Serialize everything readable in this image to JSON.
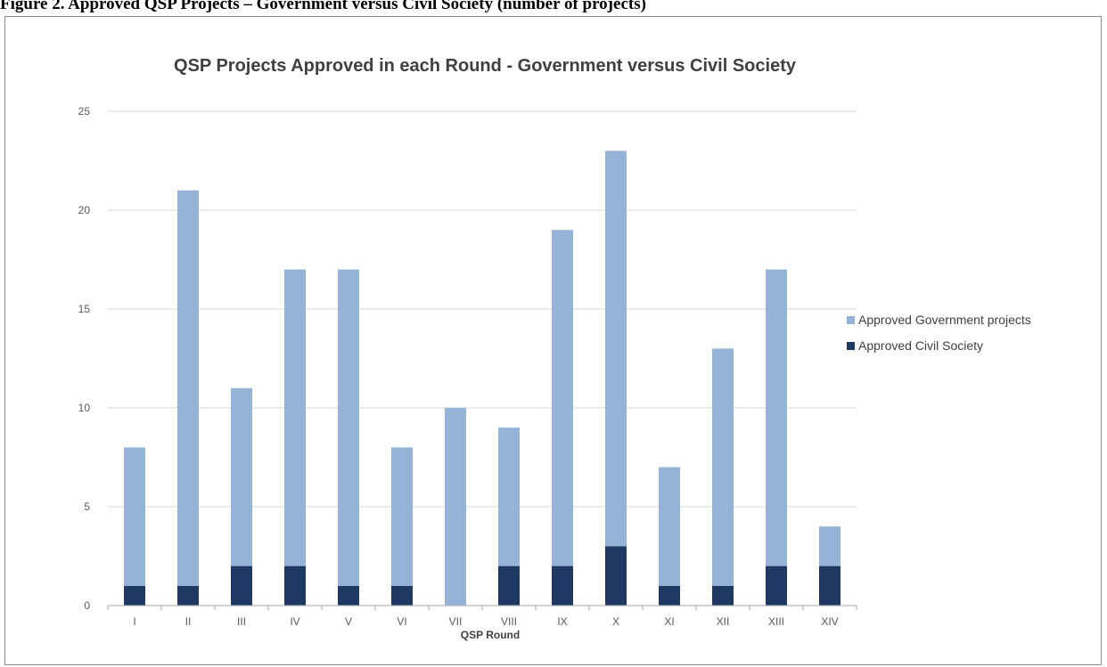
{
  "figure_caption": "Figure 2. Approved QSP Projects – Government versus Civil Society (number of projects)",
  "colors": {
    "government": "#95b3d7",
    "civil_society": "#1f3864",
    "grid": "#d9d9d9",
    "axis": "#a6a6a6"
  },
  "chart_data": {
    "type": "bar",
    "stacked": true,
    "title": "QSP Projects Approved in each Round - Government versus Civil Society",
    "xlabel": "QSP Round",
    "ylabel": "",
    "ylim": [
      0,
      25
    ],
    "yticks": [
      0,
      5,
      10,
      15,
      20,
      25
    ],
    "grid": true,
    "legend_position": "right",
    "categories": [
      "I",
      "II",
      "III",
      "IV",
      "V",
      "VI",
      "VII",
      "VIII",
      "IX",
      "X",
      "XI",
      "XII",
      "XIII",
      "XIV"
    ],
    "series": [
      {
        "name": "Approved Civil Society",
        "values": [
          1,
          1,
          2,
          2,
          1,
          1,
          0,
          2,
          2,
          3,
          1,
          1,
          2,
          2
        ]
      },
      {
        "name": "Approved Government projects",
        "values": [
          7,
          20,
          9,
          15,
          16,
          7,
          10,
          7,
          17,
          20,
          6,
          12,
          15,
          2
        ]
      }
    ],
    "legend": [
      "Approved Government projects",
      "Approved Civil Society"
    ]
  }
}
